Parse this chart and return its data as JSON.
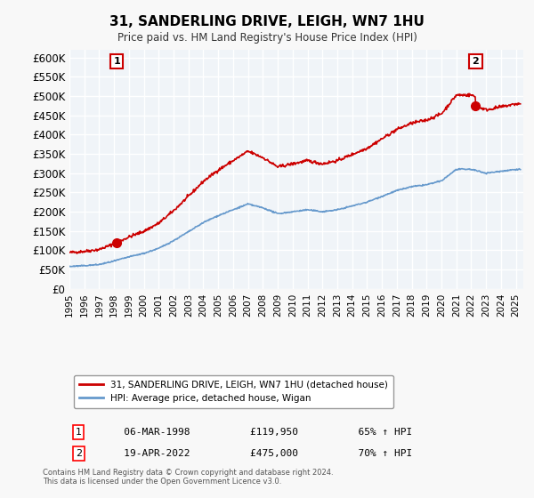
{
  "title": "31, SANDERLING DRIVE, LEIGH, WN7 1HU",
  "subtitle": "Price paid vs. HM Land Registry's House Price Index (HPI)",
  "sale1_date": 1998.18,
  "sale1_price": 119950,
  "sale2_date": 2022.3,
  "sale2_price": 475000,
  "sale1_label": "1",
  "sale2_label": "2",
  "legend_red": "31, SANDERLING DRIVE, LEIGH, WN7 1HU (detached house)",
  "legend_blue": "HPI: Average price, detached house, Wigan",
  "annotation1": [
    "1",
    "06-MAR-1998",
    "£119,950",
    "65% ↑ HPI"
  ],
  "annotation2": [
    "2",
    "19-APR-2022",
    "£475,000",
    "70% ↑ HPI"
  ],
  "footer": "Contains HM Land Registry data © Crown copyright and database right 2024.\nThis data is licensed under the Open Government Licence v3.0.",
  "ylim": [
    0,
    620000
  ],
  "xlim_start": 1995.0,
  "xlim_end": 2025.5,
  "red_color": "#cc0000",
  "blue_color": "#6699cc",
  "bg_color": "#f0f4f8",
  "grid_color": "#ffffff",
  "hpi_wigan_detached": {
    "years": [
      1995,
      1996,
      1997,
      1998,
      1999,
      2000,
      2001,
      2002,
      2003,
      2004,
      2005,
      2006,
      2007,
      2008,
      2009,
      2010,
      2011,
      2012,
      2013,
      2014,
      2015,
      2016,
      2017,
      2018,
      2019,
      2020,
      2021,
      2022,
      2023,
      2024,
      2025
    ],
    "values": [
      58000,
      60000,
      63000,
      72000,
      83000,
      92000,
      105000,
      125000,
      148000,
      172000,
      190000,
      205000,
      220000,
      210000,
      195000,
      200000,
      205000,
      200000,
      205000,
      215000,
      225000,
      240000,
      255000,
      265000,
      270000,
      280000,
      310000,
      310000,
      300000,
      305000,
      310000
    ]
  }
}
